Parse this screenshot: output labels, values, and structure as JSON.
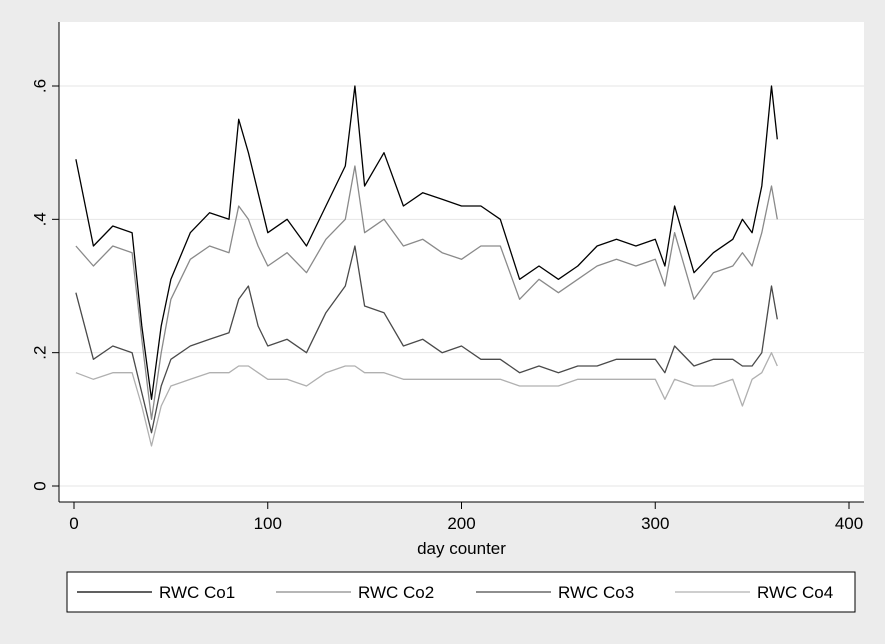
{
  "chart_data": {
    "type": "line",
    "title": "",
    "xlabel": "day counter",
    "ylabel": "",
    "xlim": [
      0,
      400
    ],
    "ylim": [
      0,
      0.72
    ],
    "x_ticks": [
      0,
      100,
      200,
      300,
      400
    ],
    "x_tick_labels": [
      "0",
      "100",
      "200",
      "300",
      "400"
    ],
    "y_ticks": [
      0,
      0.2,
      0.4,
      0.6
    ],
    "y_tick_labels": [
      "0",
      ".2",
      ".4",
      ".6"
    ],
    "grid": true,
    "legend_position": "bottom",
    "x": [
      1,
      10,
      20,
      30,
      35,
      40,
      45,
      50,
      60,
      70,
      80,
      85,
      90,
      95,
      100,
      110,
      120,
      130,
      140,
      145,
      150,
      160,
      170,
      180,
      190,
      200,
      210,
      220,
      230,
      240,
      250,
      260,
      270,
      280,
      290,
      300,
      305,
      310,
      320,
      330,
      340,
      345,
      350,
      355,
      360,
      363
    ],
    "series": [
      {
        "name": "RWC Co1",
        "color": "#000000",
        "values": [
          0.49,
          0.36,
          0.39,
          0.38,
          0.24,
          0.13,
          0.24,
          0.31,
          0.38,
          0.41,
          0.4,
          0.55,
          0.5,
          0.44,
          0.38,
          0.4,
          0.36,
          0.42,
          0.48,
          0.6,
          0.45,
          0.5,
          0.42,
          0.44,
          0.43,
          0.42,
          0.42,
          0.4,
          0.31,
          0.33,
          0.31,
          0.33,
          0.36,
          0.37,
          0.36,
          0.37,
          0.33,
          0.42,
          0.32,
          0.35,
          0.37,
          0.4,
          0.38,
          0.45,
          0.6,
          0.52
        ]
      },
      {
        "name": "RWC Co2",
        "color": "#8a8a8a",
        "values": [
          0.36,
          0.33,
          0.36,
          0.35,
          0.22,
          0.1,
          0.2,
          0.28,
          0.34,
          0.36,
          0.35,
          0.42,
          0.4,
          0.36,
          0.33,
          0.35,
          0.32,
          0.37,
          0.4,
          0.48,
          0.38,
          0.4,
          0.36,
          0.37,
          0.35,
          0.34,
          0.36,
          0.36,
          0.28,
          0.31,
          0.29,
          0.31,
          0.33,
          0.34,
          0.33,
          0.34,
          0.3,
          0.38,
          0.28,
          0.32,
          0.33,
          0.35,
          0.33,
          0.38,
          0.45,
          0.4
        ]
      },
      {
        "name": "RWC Co3",
        "color": "#4a4a4a",
        "values": [
          0.29,
          0.19,
          0.21,
          0.2,
          0.14,
          0.08,
          0.15,
          0.19,
          0.21,
          0.22,
          0.23,
          0.28,
          0.3,
          0.24,
          0.21,
          0.22,
          0.2,
          0.26,
          0.3,
          0.36,
          0.27,
          0.26,
          0.21,
          0.22,
          0.2,
          0.21,
          0.19,
          0.19,
          0.17,
          0.18,
          0.17,
          0.18,
          0.18,
          0.19,
          0.19,
          0.19,
          0.17,
          0.21,
          0.18,
          0.19,
          0.19,
          0.18,
          0.18,
          0.2,
          0.3,
          0.25
        ]
      },
      {
        "name": "RWC Co4",
        "color": "#b0b0b0",
        "values": [
          0.17,
          0.16,
          0.17,
          0.17,
          0.12,
          0.06,
          0.12,
          0.15,
          0.16,
          0.17,
          0.17,
          0.18,
          0.18,
          0.17,
          0.16,
          0.16,
          0.15,
          0.17,
          0.18,
          0.18,
          0.17,
          0.17,
          0.16,
          0.16,
          0.16,
          0.16,
          0.16,
          0.16,
          0.15,
          0.15,
          0.15,
          0.16,
          0.16,
          0.16,
          0.16,
          0.16,
          0.13,
          0.16,
          0.15,
          0.15,
          0.16,
          0.12,
          0.16,
          0.17,
          0.2,
          0.18
        ]
      }
    ]
  }
}
